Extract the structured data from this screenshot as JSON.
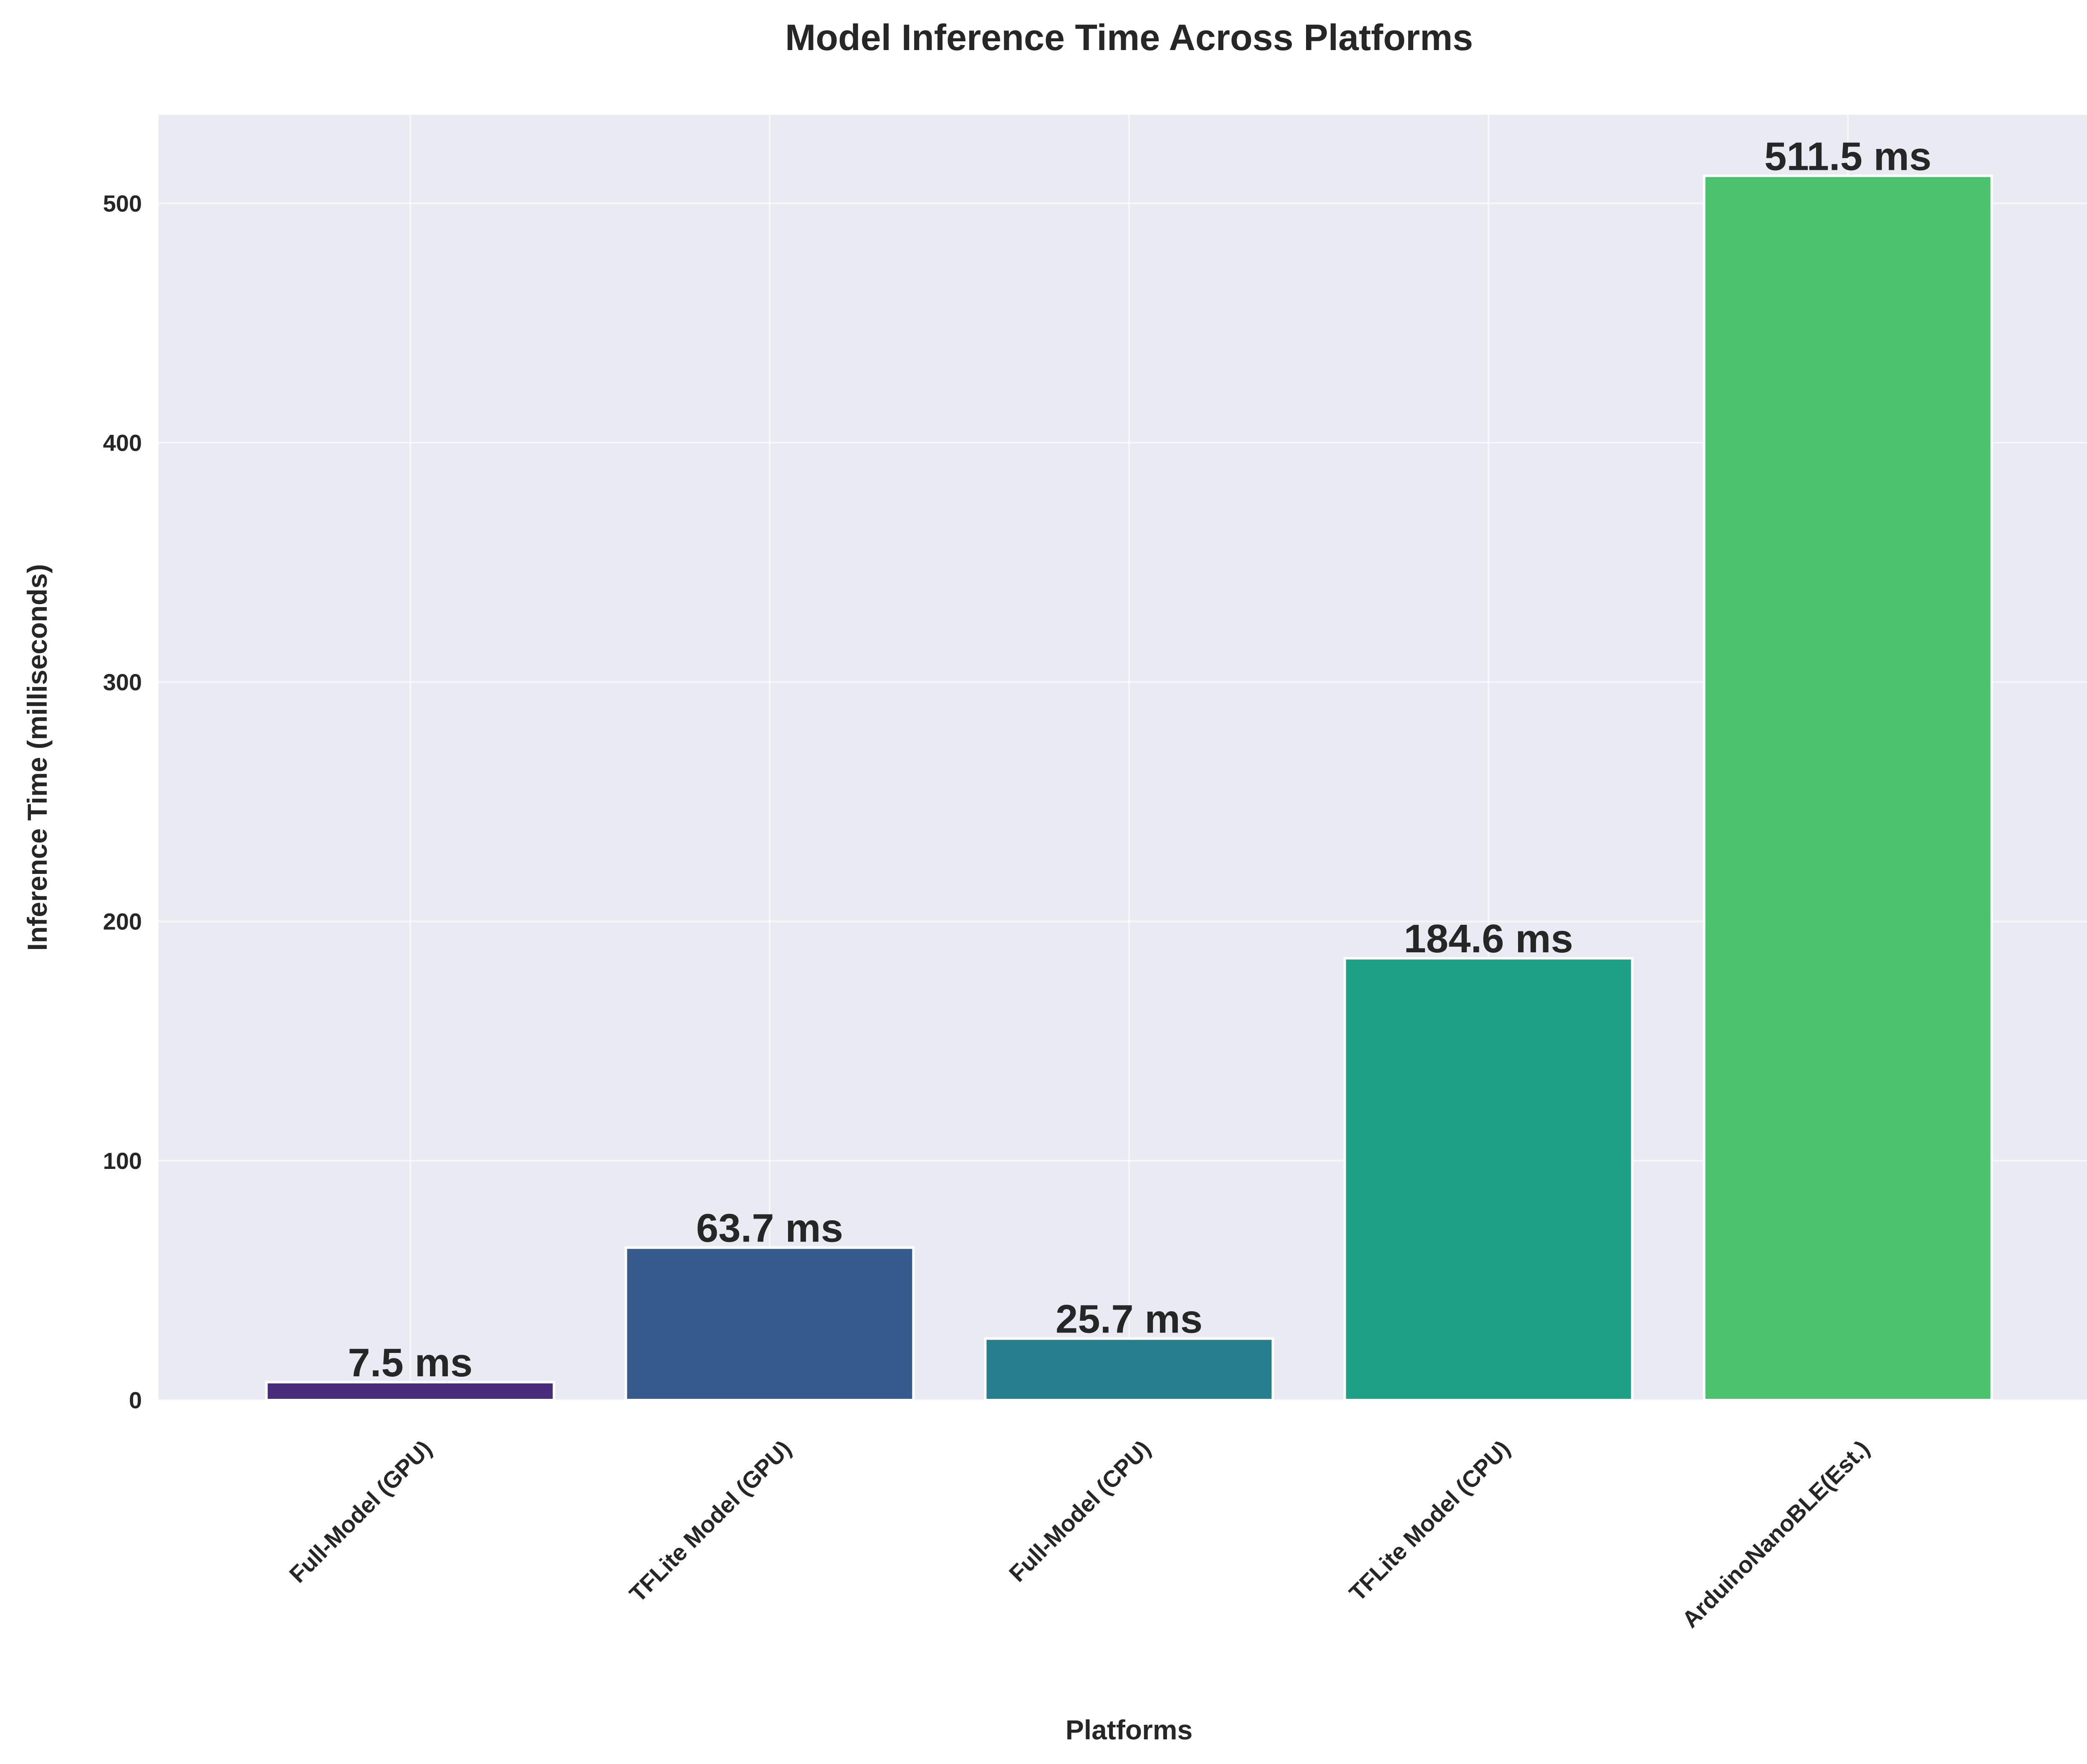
{
  "chart_data": {
    "type": "bar",
    "title": "Model Inference Time Across Platforms",
    "xlabel": "Platforms",
    "ylabel": "Inference Time (milliseconds)",
    "categories": [
      "Full-Model (GPU)",
      "TFLite Model (GPU)",
      "Full-Model (CPU)",
      "TFLite Model (CPU)",
      "ArduinoNanoBLE(Est.)"
    ],
    "values": [
      7.5,
      63.7,
      25.7,
      184.6,
      511.5
    ],
    "value_labels": [
      "7.5 ms",
      "63.7 ms",
      "25.7 ms",
      "184.6 ms",
      "511.5 ms"
    ],
    "bar_colors": [
      "#472d7b",
      "#365c8d",
      "#277f8e",
      "#1fa187",
      "#4ac16d"
    ],
    "ylim": [
      0,
      537
    ],
    "yticks": [
      0,
      100,
      200,
      300,
      400,
      500
    ],
    "ytick_labels": [
      "0",
      "100",
      "200",
      "300",
      "400",
      "500"
    ],
    "grid": true,
    "legend": "none",
    "colors": {
      "plot_background": "#eaeaf2",
      "grid": "#ffffff",
      "text": "#262626",
      "bar_edge": "#ffffff"
    }
  }
}
